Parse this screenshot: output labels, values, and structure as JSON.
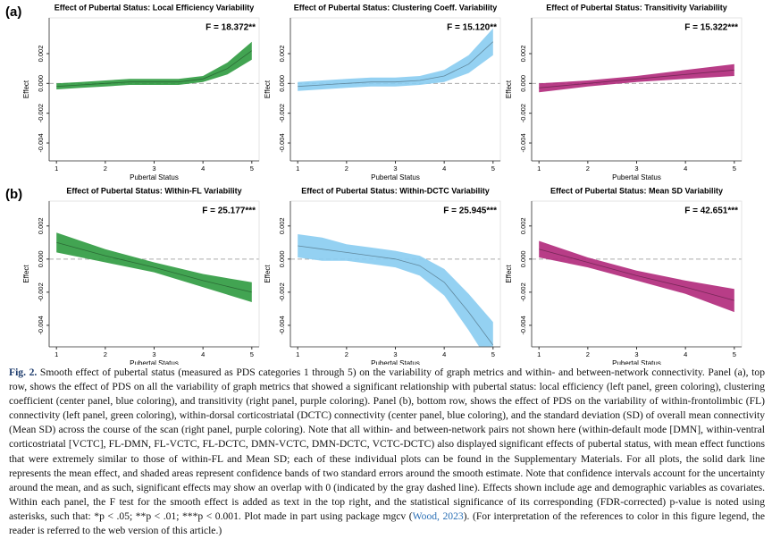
{
  "panel_labels": [
    "(a)",
    "(b)"
  ],
  "chart_data": [
    {
      "type": "band-line",
      "title": "Effect of Pubertal Status: Local Efficiency Variability",
      "annotation": "F = 18.372**",
      "color": "#2e9a3f",
      "x": [
        1,
        1.5,
        2,
        2.5,
        3,
        3.5,
        4,
        4.5,
        5
      ],
      "values": [
        -0.0002,
        -0.0001,
        0.0,
        0.0001,
        0.0001,
        0.0001,
        0.0003,
        0.001,
        0.0022
      ],
      "lower": [
        -0.0004,
        -0.0003,
        -0.0002,
        -0.0001,
        -0.0001,
        -0.0001,
        0.0001,
        0.0006,
        0.0016
      ],
      "upper": [
        0.0,
        0.0001,
        0.0002,
        0.0003,
        0.0003,
        0.0003,
        0.0005,
        0.0014,
        0.0028
      ],
      "hline": 0,
      "xlabel": "Pubertal Status",
      "ylabel": "Effect",
      "xlim": [
        0.85,
        5.15
      ],
      "xticks": [
        1,
        2,
        3,
        4,
        5
      ],
      "ylim": [
        -0.0052,
        0.0044
      ],
      "yticks": [
        -0.004,
        -0.002,
        {
          "value": 0,
          "label": "0.000"
        },
        0.002
      ]
    },
    {
      "type": "band-line",
      "title": "Effect of Pubertal Status: Clustering Coeff. Variability",
      "annotation": "F = 15.120**",
      "color": "#88ccf1",
      "x": [
        1,
        1.5,
        2,
        2.5,
        3,
        3.5,
        4,
        4.5,
        5
      ],
      "values": [
        -0.0002,
        -0.0001,
        0.0,
        0.0001,
        0.0001,
        0.0002,
        0.0005,
        0.0013,
        0.0028
      ],
      "lower": [
        -0.0005,
        -0.0004,
        -0.0003,
        -0.0002,
        -0.0002,
        -0.0001,
        0.0001,
        0.0007,
        0.0019
      ],
      "upper": [
        0.0001,
        0.0002,
        0.0003,
        0.0004,
        0.0004,
        0.0005,
        0.0009,
        0.0019,
        0.0037
      ],
      "hline": 0,
      "xlabel": "Pubertal Status",
      "ylabel": "Effect",
      "xlim": [
        0.85,
        5.15
      ],
      "xticks": [
        1,
        2,
        3,
        4,
        5
      ],
      "ylim": [
        -0.0052,
        0.0044
      ],
      "yticks": [
        -0.004,
        -0.002,
        {
          "value": 0,
          "label": "0.000"
        },
        0.002
      ]
    },
    {
      "type": "band-line",
      "title": "Effect of Pubertal Status: Transitivity Variability",
      "annotation": "F = 15.322***",
      "color": "#b0287a",
      "x": [
        1,
        2,
        3,
        4,
        5
      ],
      "values": [
        -0.0003,
        0.0,
        0.0003,
        0.0006,
        0.0009
      ],
      "lower": [
        -0.0006,
        -0.0002,
        0.0001,
        0.0003,
        0.0005
      ],
      "upper": [
        0.0,
        0.0002,
        0.0005,
        0.0009,
        0.0013
      ],
      "hline": 0,
      "xlabel": "Pubertal Status",
      "ylabel": "Effect",
      "xlim": [
        0.85,
        5.15
      ],
      "xticks": [
        1,
        2,
        3,
        4,
        5
      ],
      "ylim": [
        -0.0052,
        0.0044
      ],
      "yticks": [
        -0.004,
        -0.002,
        {
          "value": 0,
          "label": "0.000"
        },
        0.002
      ]
    },
    {
      "type": "band-line",
      "title": "Effect of Pubertal Status: Within-FL Variability",
      "annotation": "F = 25.177***",
      "color": "#2e9a3f",
      "x": [
        1,
        2,
        3,
        4,
        5
      ],
      "values": [
        0.001,
        0.0002,
        -0.0005,
        -0.0013,
        -0.002
      ],
      "lower": [
        0.0004,
        -0.0002,
        -0.0008,
        -0.0017,
        -0.0026
      ],
      "upper": [
        0.0016,
        0.0006,
        -0.0002,
        -0.0009,
        -0.0014
      ],
      "hline": 0,
      "xlabel": "Pubertal Status",
      "ylabel": "Effect",
      "xlim": [
        0.85,
        5.15
      ],
      "xticks": [
        1,
        2,
        3,
        4,
        5
      ],
      "ylim": [
        -0.0053,
        0.0035
      ],
      "yticks": [
        -0.004,
        -0.002,
        {
          "value": 0,
          "label": "0.000"
        },
        0.002
      ]
    },
    {
      "type": "band-line",
      "title": "Effect of Pubertal Status: Within-DCTC Variability",
      "annotation": "F = 25.945***",
      "color": "#88ccf1",
      "x": [
        1,
        1.5,
        2,
        2.5,
        3,
        3.5,
        4,
        4.5,
        5
      ],
      "values": [
        0.0008,
        0.0006,
        0.0004,
        0.0002,
        0.0,
        -0.0004,
        -0.0014,
        -0.0032,
        -0.0052
      ],
      "lower": [
        0.0001,
        -0.0001,
        -0.0001,
        -0.0003,
        -0.0005,
        -0.001,
        -0.0022,
        -0.0043,
        -0.0066
      ],
      "upper": [
        0.0015,
        0.0013,
        0.0009,
        0.0007,
        0.0005,
        0.0002,
        -0.0006,
        -0.0021,
        -0.0038
      ],
      "hline": 0,
      "xlabel": "Pubertal Status",
      "ylabel": "Effect",
      "xlim": [
        0.85,
        5.15
      ],
      "xticks": [
        1,
        2,
        3,
        4,
        5
      ],
      "ylim": [
        -0.0053,
        0.0035
      ],
      "yticks": [
        -0.004,
        -0.002,
        {
          "value": 0,
          "label": "0.000"
        },
        0.002
      ]
    },
    {
      "type": "band-line",
      "title": "Effect of Pubertal Status: Mean SD Variability",
      "annotation": "F = 42.651***",
      "color": "#b0287a",
      "x": [
        1,
        2,
        3,
        4,
        5
      ],
      "values": [
        0.0006,
        -0.0002,
        -0.001,
        -0.0017,
        -0.0025
      ],
      "lower": [
        0.0001,
        -0.0005,
        -0.0013,
        -0.0021,
        -0.0032
      ],
      "upper": [
        0.0011,
        0.0001,
        -0.0007,
        -0.0013,
        -0.0018
      ],
      "hline": 0,
      "xlabel": "Pubertal Status",
      "ylabel": "Effect",
      "xlim": [
        0.85,
        5.15
      ],
      "xticks": [
        1,
        2,
        3,
        4,
        5
      ],
      "ylim": [
        -0.0053,
        0.0035
      ],
      "yticks": [
        -0.004,
        -0.002,
        {
          "value": 0,
          "label": "0.000"
        },
        0.002
      ]
    }
  ],
  "caption": {
    "label": "Fig. 2.",
    "text_before": "Smooth effect of pubertal status (measured as PDS categories 1 through 5) on the variability of graph metrics and within- and between-network connectivity. Panel (a), top row, shows the effect of PDS on all the variability of graph metrics that showed a significant relationship with pubertal status: local efficiency (left panel, green coloring), clustering coefficient (center panel, blue coloring), and transitivity (right panel, purple coloring). Panel (b), bottom row, shows the effect of PDS on the variability of within-frontolimbic (FL) connectivity (left panel, green coloring), within-dorsal corticostriatal (DCTC) connectivity (center panel, blue coloring), and the standard deviation (SD) of overall mean connectivity (Mean SD) across the course of the scan (right panel, purple coloring). Note that all within- and between-network pairs not shown here (within-default mode [DMN], within-ventral corticostriatal [VCTC], FL-DMN, FL-VCTC, FL-DCTC, DMN-VCTC, DMN-DCTC, VCTC-DCTC) also displayed significant effects of pubertal status, with mean effect functions that were extremely similar to those of within-FL and Mean SD; each of these individual plots can be found in the Supplementary Materials. For all plots, the solid dark line represents the mean effect, and shaded areas represent confidence bands of two standard errors around the smooth estimate. Note that confidence intervals account for the uncertainty around the mean, and as such, significant effects may show an overlap with 0 (indicated by the gray dashed line). Effects shown include age and demographic variables as covariates. Within each panel, the F test for the smooth effect is added as text in the top right, and the statistical significance of its corresponding (FDR-corrected) p-value is noted using asterisks, such that: *p < .05; **p < .01; ***p < 0.001. Plot made in part using package mgcv (",
    "link": "Wood, 2023",
    "text_after": "). (For interpretation of the references to color in this figure legend, the reader is referred to the web version of this article.)"
  }
}
